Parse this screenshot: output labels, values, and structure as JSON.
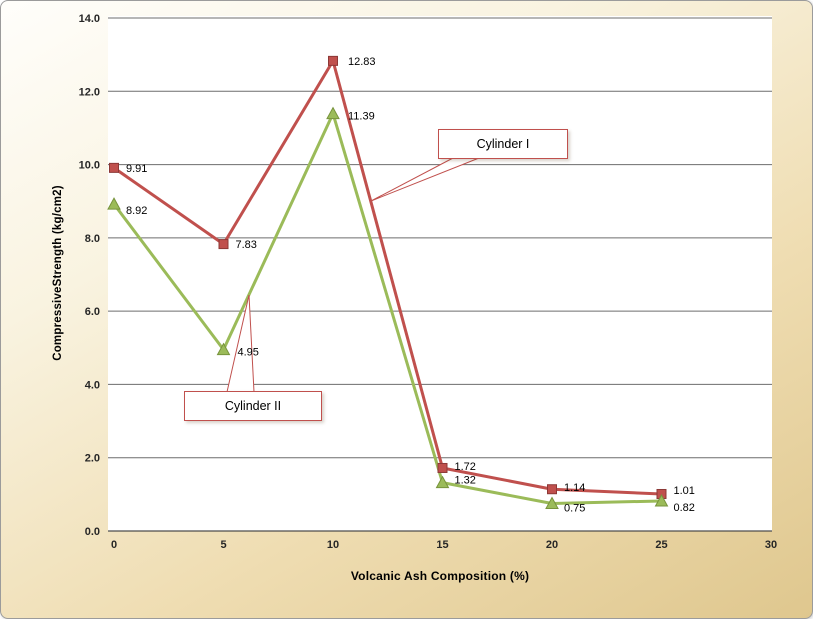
{
  "page": {
    "background_top": "#fffefb",
    "background_bottom": "#dfc78e",
    "frame_border": "#9b9b9b"
  },
  "chart_data": {
    "type": "line",
    "title": "",
    "xlabel": "Volcanic Ash Composition  (%)",
    "ylabel": "CompressiveStrength  (kg/cm2)",
    "x": [
      0,
      5,
      10,
      15,
      20,
      25
    ],
    "xlim": [
      0,
      30
    ],
    "ylim": [
      0,
      14
    ],
    "xticks": [
      0,
      5,
      10,
      15,
      20,
      25,
      30
    ],
    "yticks": [
      0,
      2,
      4,
      6,
      8,
      10,
      12,
      14
    ],
    "ytick_decimals": 1,
    "grid": true,
    "gridline_color": "#6d6d6d",
    "axis_line_color": "#4d4d4d",
    "plot_background": "#ffffff",
    "data_label_color": "#000000",
    "legend_position": "callouts-on-plot",
    "series": [
      {
        "name": "Cylinder I",
        "marker": "square",
        "color": "#c0504d",
        "marker_edge": "#8c3836",
        "values": [
          9.91,
          7.83,
          12.83,
          1.72,
          1.14,
          1.01
        ],
        "labels": [
          "9.91",
          "7.83",
          "12.83",
          "1.72",
          "1.14",
          "1.01"
        ],
        "label_offsets": [
          [
            12,
            4
          ],
          [
            12,
            4
          ],
          [
            15,
            4
          ],
          [
            12,
            2
          ],
          [
            12,
            2
          ],
          [
            12,
            0
          ]
        ]
      },
      {
        "name": "Cylinder II",
        "marker": "triangle",
        "color": "#9bbb59",
        "marker_edge": "#77933c",
        "values": [
          8.92,
          4.95,
          11.39,
          1.32,
          0.75,
          0.82
        ],
        "labels": [
          "8.92",
          "4.95",
          "11.39",
          "1.32",
          "0.75",
          "0.82"
        ],
        "label_offsets": [
          [
            12,
            10
          ],
          [
            14,
            6
          ],
          [
            15,
            6
          ],
          [
            12,
            1
          ],
          [
            12,
            8
          ],
          [
            12,
            10
          ]
        ]
      }
    ]
  },
  "callouts": [
    {
      "label": "Cylinder I",
      "border_color": "#c0504d"
    },
    {
      "label": "Cylinder II",
      "border_color": "#c0504d"
    }
  ]
}
